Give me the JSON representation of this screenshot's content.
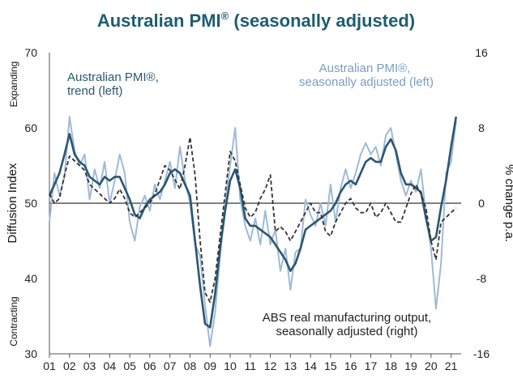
{
  "chart_data": {
    "type": "line",
    "title": "Australian PMI",
    "title_mark": "®",
    "title_suffix": " (seasonally adjusted)",
    "ylabel_left": "Diffusion Index",
    "ylabel_right": "% change p.a.",
    "label_expanding": "Expanding",
    "label_contracting": "Contracting",
    "ylim_left": [
      30,
      70
    ],
    "ylim_right": [
      -16,
      16
    ],
    "yticks_left": [
      "30",
      "40",
      "50",
      "60",
      "70"
    ],
    "yticks_right": [
      "-16",
      "-8",
      "0",
      "8",
      "16"
    ],
    "xlim": [
      2001.0,
      2021.5
    ],
    "xticks": [
      "01",
      "02",
      "03",
      "04",
      "05",
      "06",
      "07",
      "08",
      "09",
      "10",
      "11",
      "12",
      "13",
      "14",
      "15",
      "16",
      "17",
      "18",
      "19",
      "20",
      "21"
    ],
    "reference_line": 50,
    "annotations": {
      "trend": [
        "Australian PMI®,",
        "trend (left)"
      ],
      "sa": [
        "Australian PMI®,",
        "seasonally adjusted (left)"
      ],
      "abs": [
        "ABS real manufacturing output,",
        "seasonally adjusted (right)"
      ]
    },
    "series": [
      {
        "name": "Australian PMI®, seasonally adjusted (left)",
        "axis": "left",
        "color": "#9fbad6",
        "x": [
          2001.0,
          2001.25,
          2001.5,
          2001.75,
          2002.0,
          2002.25,
          2002.5,
          2002.75,
          2003.0,
          2003.25,
          2003.5,
          2003.75,
          2004.0,
          2004.25,
          2004.5,
          2004.75,
          2005.0,
          2005.25,
          2005.5,
          2005.75,
          2006.0,
          2006.25,
          2006.5,
          2006.75,
          2007.0,
          2007.25,
          2007.5,
          2007.75,
          2008.0,
          2008.25,
          2008.5,
          2008.75,
          2009.0,
          2009.25,
          2009.5,
          2009.75,
          2010.0,
          2010.25,
          2010.5,
          2010.75,
          2011.0,
          2011.25,
          2011.5,
          2011.75,
          2012.0,
          2012.25,
          2012.5,
          2012.75,
          2013.0,
          2013.25,
          2013.5,
          2013.75,
          2014.0,
          2014.25,
          2014.5,
          2014.75,
          2015.0,
          2015.25,
          2015.5,
          2015.75,
          2016.0,
          2016.25,
          2016.5,
          2016.75,
          2017.0,
          2017.25,
          2017.5,
          2017.75,
          2018.0,
          2018.25,
          2018.5,
          2018.75,
          2019.0,
          2019.25,
          2019.5,
          2019.75,
          2020.0,
          2020.25,
          2020.5,
          2020.75,
          2021.0,
          2021.25
        ],
        "values": [
          47.5,
          54.0,
          51.0,
          53.5,
          61.5,
          57.0,
          55.0,
          56.5,
          50.5,
          54.5,
          52.0,
          55.5,
          50.0,
          53.0,
          56.5,
          54.0,
          47.5,
          45.0,
          49.5,
          51.0,
          49.0,
          52.5,
          50.5,
          53.0,
          55.5,
          52.0,
          57.5,
          53.0,
          50.0,
          44.5,
          43.0,
          36.5,
          31.0,
          35.5,
          43.0,
          50.0,
          55.0,
          60.0,
          50.5,
          47.0,
          45.0,
          48.0,
          44.5,
          49.0,
          44.5,
          46.5,
          41.0,
          44.0,
          38.5,
          43.5,
          44.0,
          50.5,
          48.5,
          47.0,
          50.0,
          47.0,
          52.5,
          47.5,
          52.0,
          54.5,
          52.0,
          54.0,
          56.5,
          58.0,
          56.5,
          57.5,
          55.0,
          59.0,
          60.0,
          56.5,
          53.0,
          51.0,
          53.0,
          51.5,
          54.5,
          48.5,
          44.0,
          36.0,
          42.0,
          54.0,
          55.5,
          61.0
        ]
      },
      {
        "name": "Australian PMI®, trend (left)",
        "axis": "left",
        "color": "#2b5672",
        "x": [
          2001.0,
          2001.25,
          2001.5,
          2001.75,
          2002.0,
          2002.25,
          2002.5,
          2002.75,
          2003.0,
          2003.25,
          2003.5,
          2003.75,
          2004.0,
          2004.25,
          2004.5,
          2004.75,
          2005.0,
          2005.25,
          2005.5,
          2005.75,
          2006.0,
          2006.25,
          2006.5,
          2006.75,
          2007.0,
          2007.25,
          2007.5,
          2007.75,
          2008.0,
          2008.25,
          2008.5,
          2008.75,
          2009.0,
          2009.25,
          2009.5,
          2009.75,
          2010.0,
          2010.25,
          2010.5,
          2010.75,
          2011.0,
          2011.25,
          2011.5,
          2011.75,
          2012.0,
          2012.25,
          2012.5,
          2012.75,
          2013.0,
          2013.25,
          2013.5,
          2013.75,
          2014.0,
          2014.25,
          2014.5,
          2014.75,
          2015.0,
          2015.25,
          2015.5,
          2015.75,
          2016.0,
          2016.25,
          2016.5,
          2016.75,
          2017.0,
          2017.25,
          2017.5,
          2017.75,
          2018.0,
          2018.25,
          2018.5,
          2018.75,
          2019.0,
          2019.25,
          2019.5,
          2019.75,
          2020.0,
          2020.25,
          2020.5,
          2020.75,
          2021.0,
          2021.25
        ],
        "values": [
          51.0,
          52.5,
          54.0,
          56.5,
          59.2,
          56.5,
          55.5,
          55.0,
          53.5,
          53.0,
          52.5,
          53.5,
          53.0,
          53.5,
          53.5,
          52.0,
          50.5,
          48.5,
          48.0,
          49.5,
          50.5,
          51.0,
          51.5,
          52.5,
          54.0,
          54.5,
          54.0,
          52.5,
          51.0,
          45.0,
          39.0,
          34.0,
          33.5,
          38.0,
          44.0,
          49.0,
          53.0,
          54.5,
          52.0,
          48.0,
          47.0,
          47.0,
          46.5,
          46.0,
          45.5,
          44.5,
          43.5,
          42.5,
          41.0,
          42.0,
          44.0,
          46.5,
          47.0,
          47.5,
          48.0,
          48.5,
          49.0,
          50.0,
          51.5,
          52.5,
          53.0,
          52.5,
          54.0,
          55.5,
          56.0,
          55.5,
          55.5,
          57.5,
          58.5,
          57.0,
          54.0,
          52.5,
          52.5,
          52.0,
          51.5,
          48.0,
          45.0,
          45.5,
          49.5,
          53.0,
          57.5,
          61.5
        ]
      },
      {
        "name": "ABS real manufacturing output, seasonally adjusted (right)",
        "axis": "right",
        "color": "#333333",
        "x": [
          2001.0,
          2001.25,
          2001.5,
          2001.75,
          2002.0,
          2002.25,
          2002.5,
          2002.75,
          2003.0,
          2003.25,
          2003.5,
          2003.75,
          2004.0,
          2004.25,
          2004.5,
          2004.75,
          2005.0,
          2005.25,
          2005.5,
          2005.75,
          2006.0,
          2006.25,
          2006.5,
          2006.75,
          2007.0,
          2007.25,
          2007.5,
          2007.75,
          2008.0,
          2008.25,
          2008.5,
          2008.75,
          2009.0,
          2009.25,
          2009.5,
          2009.75,
          2010.0,
          2010.25,
          2010.5,
          2010.75,
          2011.0,
          2011.25,
          2011.5,
          2011.75,
          2012.0,
          2012.25,
          2012.5,
          2012.75,
          2013.0,
          2013.25,
          2013.5,
          2013.75,
          2014.0,
          2014.25,
          2014.5,
          2014.75,
          2015.0,
          2015.25,
          2015.5,
          2015.75,
          2016.0,
          2016.25,
          2016.5,
          2016.75,
          2017.0,
          2017.25,
          2017.5,
          2017.75,
          2018.0,
          2018.25,
          2018.5,
          2018.75,
          2019.0,
          2019.25,
          2019.5,
          2019.75,
          2020.0,
          2020.25,
          2020.5,
          2020.75,
          2021.0,
          2021.25
        ],
        "values": [
          1.0,
          0.0,
          0.5,
          3.0,
          5.0,
          4.5,
          4.0,
          3.5,
          2.0,
          1.5,
          1.0,
          0.5,
          0.0,
          0.5,
          1.5,
          0.5,
          -1.0,
          -1.5,
          -1.0,
          -0.5,
          0.0,
          1.0,
          2.5,
          4.0,
          3.5,
          2.5,
          1.5,
          4.0,
          7.0,
          3.0,
          -4.0,
          -9.5,
          -10.5,
          -8.0,
          -3.5,
          1.0,
          5.5,
          4.5,
          2.0,
          -0.5,
          -1.5,
          -1.0,
          0.5,
          1.5,
          3.0,
          -3.0,
          -2.5,
          -3.0,
          -4.0,
          -3.0,
          -2.0,
          -1.0,
          0.0,
          -1.0,
          -1.0,
          -3.0,
          -3.5,
          -2.0,
          -1.0,
          0.0,
          0.5,
          -0.5,
          -1.0,
          -1.0,
          0.0,
          -1.5,
          -1.0,
          0.0,
          -1.0,
          -2.0,
          -2.0,
          -0.5,
          1.0,
          2.0,
          1.0,
          -0.5,
          -4.0,
          -6.0,
          -2.0,
          -1.5,
          -1.0,
          -0.5
        ]
      }
    ]
  }
}
